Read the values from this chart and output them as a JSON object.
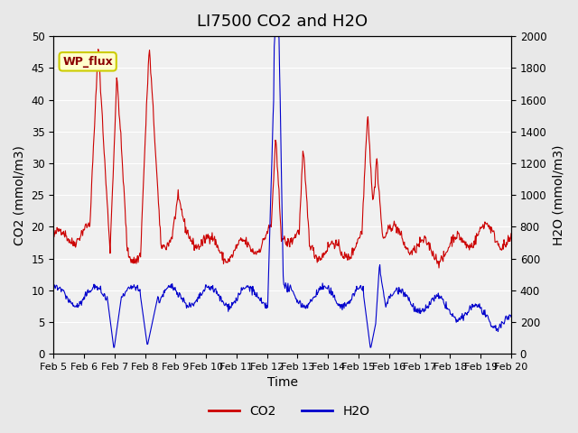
{
  "title": "LI7500 CO2 and H2O",
  "xlabel": "Time",
  "ylabel_left": "CO2 (mmol/m3)",
  "ylabel_right": "H2O (mmol/m3)",
  "ylim_left": [
    0,
    50
  ],
  "xtick_labels": [
    "Feb 5",
    "Feb 6",
    "Feb 7",
    "Feb 8",
    "Feb 9",
    "Feb 10",
    "Feb 11",
    "Feb 12",
    "Feb 13",
    "Feb 14",
    "Feb 15",
    "Feb 16",
    "Feb 17",
    "Feb 18",
    "Feb 19",
    "Feb 20"
  ],
  "legend_label1": "CO2",
  "legend_label2": "H2O",
  "annotation_text": "WP_flux",
  "co2_color": "#cc0000",
  "h2o_color": "#0000cc",
  "bg_color": "#e8e8e8",
  "plot_bg_color": "#f0f0f0",
  "title_fontsize": 13,
  "axis_fontsize": 10,
  "tick_fontsize": 8.5
}
